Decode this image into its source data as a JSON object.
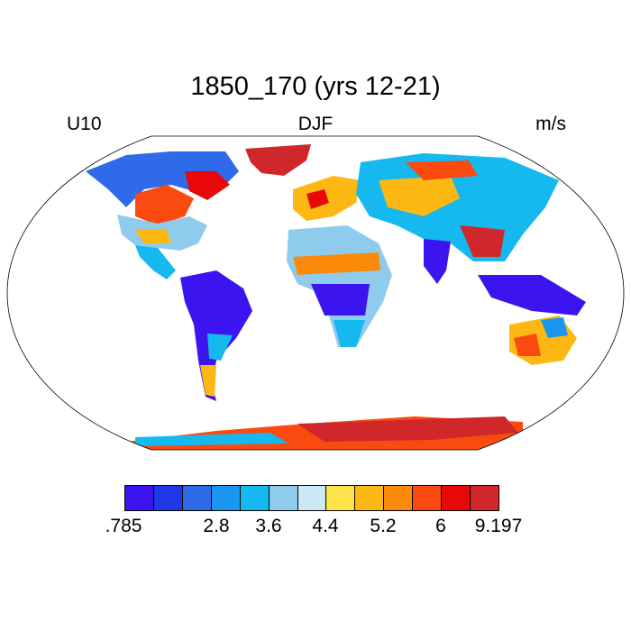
{
  "title": "1850_170 (yrs 12-21)",
  "variable": "U10",
  "season": "DJF",
  "units": "m/s",
  "colorbar": {
    "colors": [
      "#3b14f0",
      "#1f38e8",
      "#2f6ae8",
      "#1a96f0",
      "#16b8f0",
      "#8ecbec",
      "#cde8f6",
      "#fde44a",
      "#fdb814",
      "#fc8a0a",
      "#fb4a0f",
      "#e8080a",
      "#d0282a"
    ],
    "tick_labels": [
      ".785",
      "2.8",
      "3.6",
      "4.4",
      "5.2",
      "6",
      "9.197"
    ]
  }
}
